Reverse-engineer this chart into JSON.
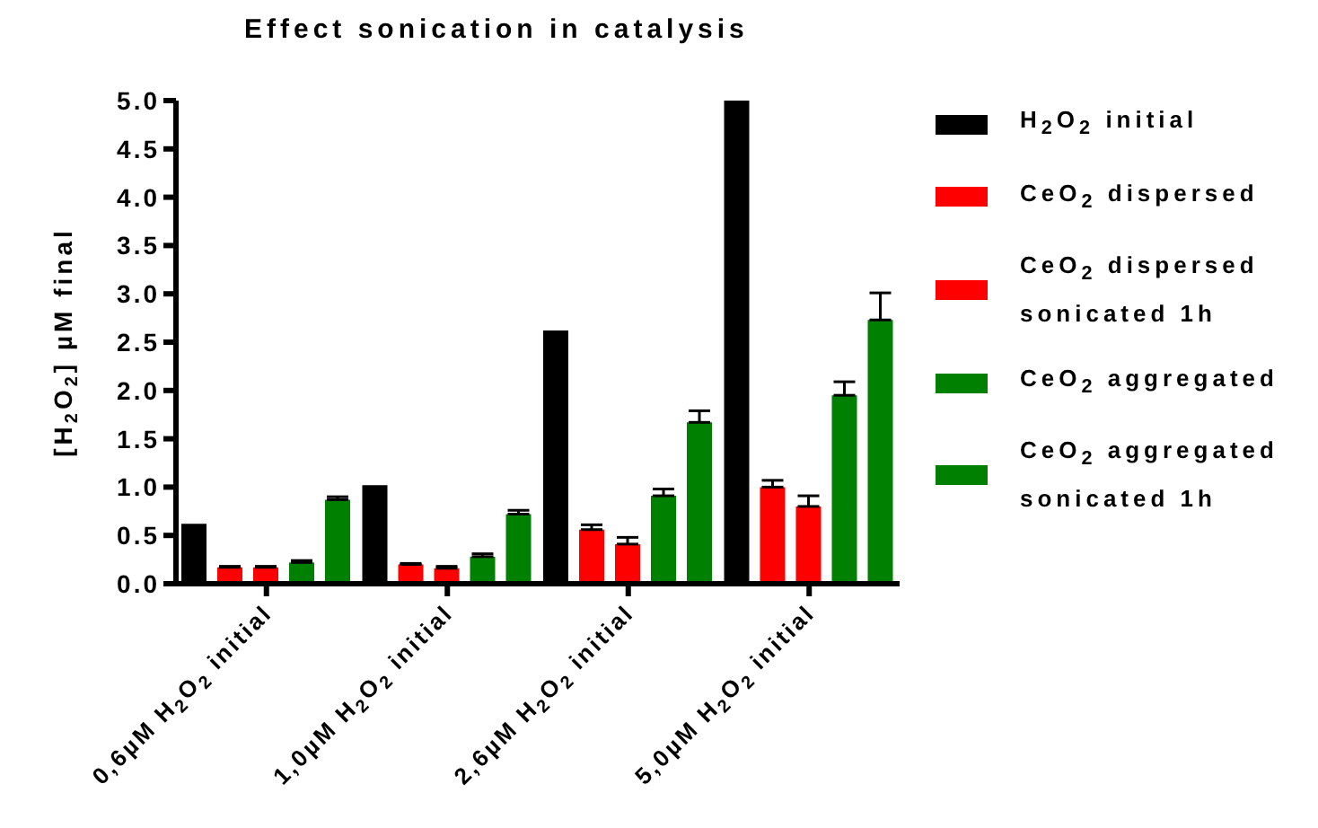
{
  "chart_data": {
    "type": "bar",
    "title": "Effect sonication in catalysis",
    "ylabel": "[H$_{2}$O$_{2}$] µM final",
    "categories": [
      "0,6µM H$_{2}$O$_{2}$ initial",
      "1,0µM H$_{2}$O$_{2}$ initial",
      "2,6µM H$_{2}$O$_{2}$ initial",
      "5,0µM H$_{2}$O$_{2}$ initial"
    ],
    "series": [
      {
        "name": "H$_{2}$O$_{2}$ initial",
        "color": "#000000",
        "values": [
          0.62,
          1.02,
          2.62,
          5.0
        ],
        "errors": [
          null,
          null,
          null,
          null
        ]
      },
      {
        "name": "CeO$_{2}$ dispersed",
        "color": "#ff0000",
        "values": [
          0.17,
          0.2,
          0.56,
          1.0
        ],
        "errors": [
          [
            0.17,
            0.18
          ],
          [
            0.2,
            0.21
          ],
          [
            0.56,
            0.61
          ],
          [
            1.0,
            1.07
          ]
        ]
      },
      {
        "name": "CeO$_{2}$ dispersed sonicated 1h",
        "color": "#ff0000",
        "values": [
          0.17,
          0.16,
          0.41,
          0.8
        ],
        "errors": [
          [
            0.17,
            0.18
          ],
          [
            0.16,
            0.18
          ],
          [
            0.41,
            0.48
          ],
          [
            0.8,
            0.91
          ]
        ]
      },
      {
        "name": "CeO$_{2}$ aggregated",
        "color": "#008000",
        "values": [
          0.22,
          0.28,
          0.91,
          1.95
        ],
        "errors": [
          [
            0.22,
            0.24
          ],
          [
            0.28,
            0.31
          ],
          [
            0.91,
            0.98
          ],
          [
            1.95,
            2.09
          ]
        ]
      },
      {
        "name": "CeO$_{2}$ aggregated sonicated 1h",
        "color": "#008000",
        "values": [
          0.87,
          0.72,
          1.67,
          2.73
        ],
        "errors": [
          [
            0.87,
            0.9
          ],
          [
            0.72,
            0.76
          ],
          [
            1.67,
            1.79
          ],
          [
            2.73,
            3.01
          ]
        ]
      }
    ],
    "ylim": [
      0,
      5
    ],
    "yticks": [
      {
        "value": 0,
        "label": "0.0"
      },
      {
        "value": 0.5,
        "label": "0.5"
      },
      {
        "value": 1,
        "label": "1.0"
      },
      {
        "value": 1.5,
        "label": "1.5"
      },
      {
        "value": 2,
        "label": "2.0"
      },
      {
        "value": 2.5,
        "label": "2.5"
      },
      {
        "value": 3,
        "label": "3.0"
      },
      {
        "value": 3.5,
        "label": "3.5"
      },
      {
        "value": 4,
        "label": "4.0"
      },
      {
        "value": 4.5,
        "label": "4.5"
      },
      {
        "value": 5,
        "label": "5.0"
      }
    ],
    "grid": false,
    "legend": "right"
  }
}
